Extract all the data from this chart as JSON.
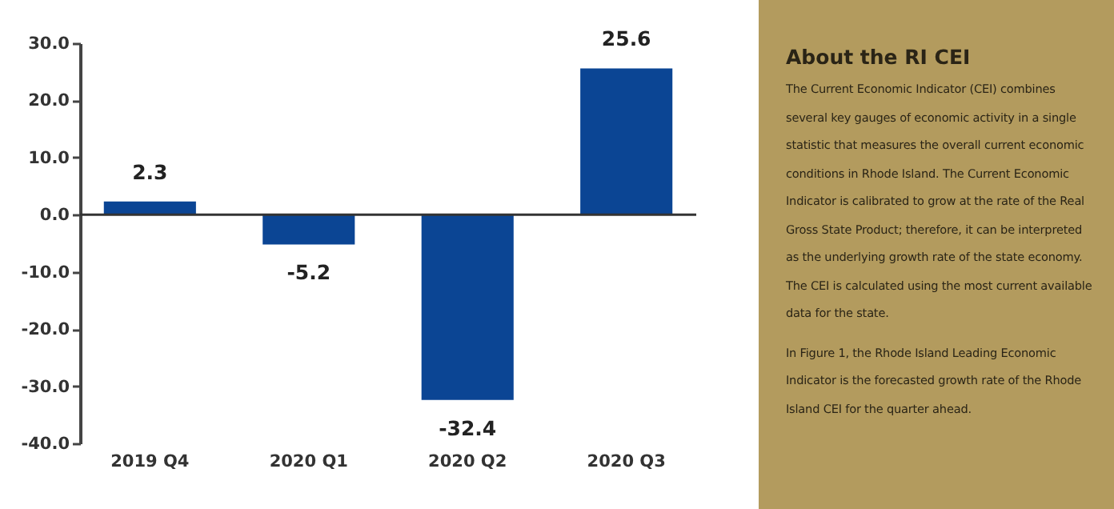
{
  "chart_data": [
    {
      "type": "bar",
      "categories": [
        "2019 Q4",
        "2020 Q1",
        "2020 Q2",
        "2020 Q3"
      ],
      "values": [
        2.3,
        -5.2,
        -32.4,
        25.6
      ],
      "color": "#0b4594",
      "ylim": [
        -40,
        30
      ],
      "yticks": [
        {
          "value": -40,
          "label": "-40.0"
        },
        {
          "value": -30,
          "label": "-30.0"
        },
        {
          "value": -20,
          "label": "-20.0"
        },
        {
          "value": -10,
          "label": "-10.0"
        },
        {
          "value": 0,
          "label": "0.0"
        },
        {
          "value": 10,
          "label": "10.0"
        },
        {
          "value": 20,
          "label": "20.0"
        },
        {
          "value": 30,
          "label": "30.0"
        }
      ],
      "ref_lines": [
        {
          "axis": "y",
          "value": 0,
          "color": "#333333"
        }
      ],
      "data_labels": true,
      "grid": false
    },
    {
      "type": "other",
      "title": "About the RI CEI",
      "annotations": [
        "The Current Economic Indicator (CEI) combines several key gauges of economic activity in a single statistic that measures the overall current economic conditions in Rhode Island. The Current Economic Indicator is calibrated to grow at the rate of the Real Gross State Product; therefore, it can be interpreted as the underlying growth rate of the state economy. The CEI is calculated using the most current available data for the state.",
        "In Figure 1, the Rhode Island Leading Economic Indicator is the forecasted growth rate of the Rhode Island CEI for the quarter ahead."
      ]
    }
  ]
}
